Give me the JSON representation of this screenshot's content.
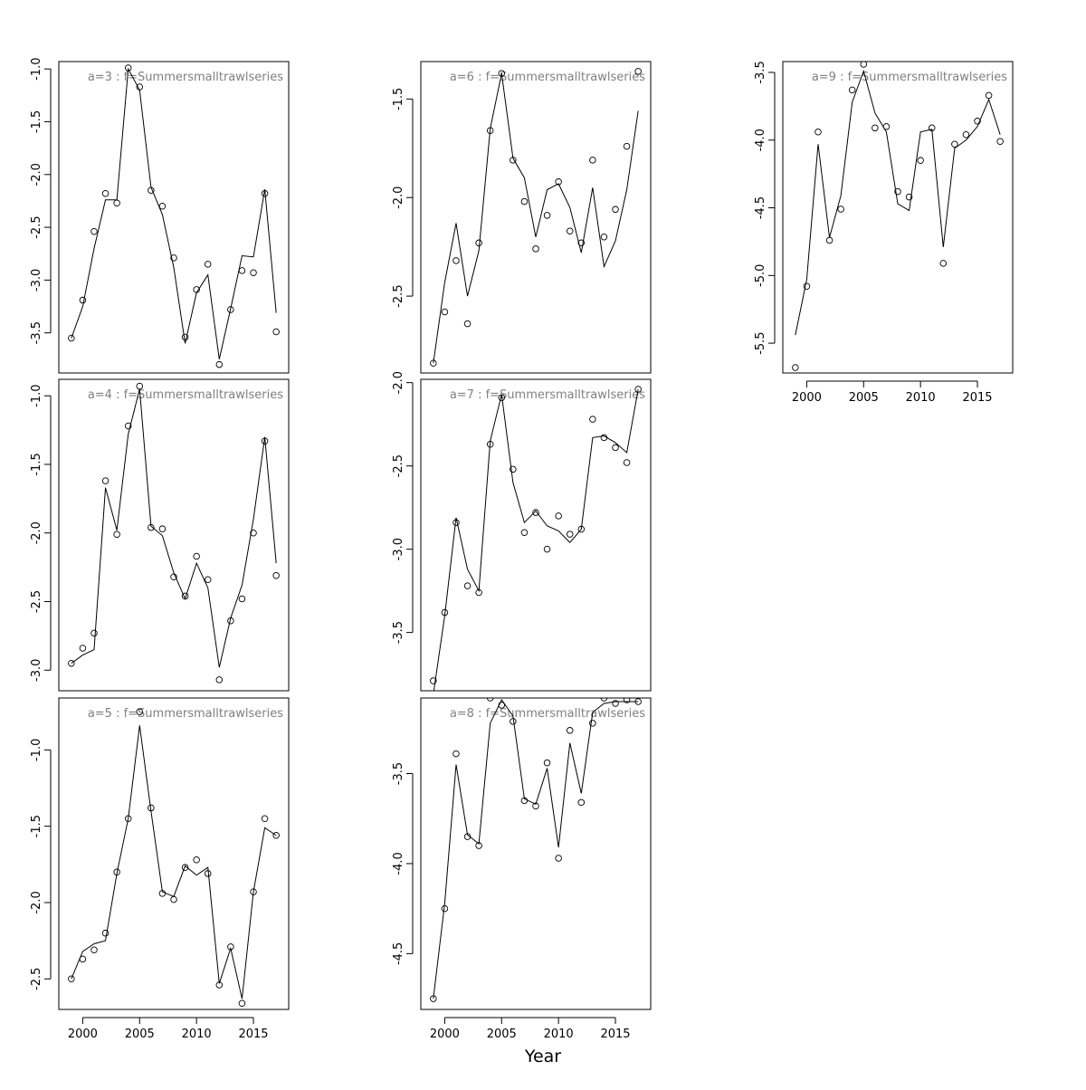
{
  "figure": {
    "xlabel": "Year"
  },
  "chart_data": [
    {
      "type": "scatter",
      "title": "a=3  :  f=Summersmalltrawlseries",
      "ylim": [
        -3.88,
        -0.93
      ],
      "yticks": [
        -3.5,
        -3.0,
        -2.5,
        -2.0,
        -1.5,
        -1.0
      ],
      "show_xticks": false,
      "x": [
        1999,
        2000,
        2001,
        2002,
        2003,
        2004,
        2005,
        2006,
        2007,
        2008,
        2009,
        2010,
        2011,
        2012,
        2013,
        2014,
        2015,
        2016,
        2017
      ],
      "series": [
        {
          "kind": "points",
          "values": [
            -3.55,
            -3.19,
            -2.54,
            -2.18,
            -2.27,
            -0.99,
            -1.17,
            -2.15,
            -2.3,
            -2.79,
            -3.54,
            -3.09,
            -2.85,
            -3.8,
            -3.28,
            -2.91,
            -2.93,
            -2.18,
            -3.49
          ]
        },
        {
          "kind": "line",
          "values": [
            -3.55,
            -3.25,
            -2.7,
            -2.24,
            -2.24,
            -1.0,
            -1.2,
            -2.12,
            -2.38,
            -2.88,
            -3.6,
            -3.12,
            -2.95,
            -3.75,
            -3.27,
            -2.77,
            -2.78,
            -2.14,
            -3.31
          ]
        }
      ]
    },
    {
      "type": "scatter",
      "title": "a=4  :  f=Summersmalltrawlseries",
      "ylim": [
        -3.15,
        -0.88
      ],
      "yticks": [
        -3.0,
        -2.5,
        -2.0,
        -1.5,
        -1.0
      ],
      "show_xticks": false,
      "x": [
        1999,
        2000,
        2001,
        2002,
        2003,
        2004,
        2005,
        2006,
        2007,
        2008,
        2009,
        2010,
        2011,
        2012,
        2013,
        2014,
        2015,
        2016,
        2017
      ],
      "series": [
        {
          "kind": "points",
          "values": [
            -2.95,
            -2.84,
            -2.73,
            -1.62,
            -2.01,
            -1.22,
            -0.93,
            -1.96,
            -1.97,
            -2.32,
            -2.46,
            -2.17,
            -2.34,
            -3.07,
            -2.64,
            -2.48,
            -2.0,
            -1.33,
            -2.31
          ]
        },
        {
          "kind": "line",
          "values": [
            -2.95,
            -2.89,
            -2.85,
            -1.67,
            -1.98,
            -1.28,
            -0.95,
            -1.95,
            -2.02,
            -2.29,
            -2.48,
            -2.22,
            -2.4,
            -2.98,
            -2.62,
            -2.38,
            -1.9,
            -1.3,
            -2.22
          ]
        }
      ]
    },
    {
      "type": "scatter",
      "title": "a=5  :  f=Summersmalltrawlseries",
      "ylim": [
        -2.7,
        -0.66
      ],
      "yticks": [
        -2.5,
        -2.0,
        -1.5,
        -1.0
      ],
      "show_xticks": true,
      "xticks": [
        2000,
        2005,
        2010,
        2015
      ],
      "x": [
        1999,
        2000,
        2001,
        2002,
        2003,
        2004,
        2005,
        2006,
        2007,
        2008,
        2009,
        2010,
        2011,
        2012,
        2013,
        2014,
        2015,
        2016,
        2017
      ],
      "series": [
        {
          "kind": "points",
          "values": [
            -2.5,
            -2.37,
            -2.31,
            -2.2,
            -1.8,
            -1.45,
            -0.75,
            -1.38,
            -1.94,
            -1.98,
            -1.77,
            -1.72,
            -1.81,
            -2.54,
            -2.29,
            -2.66,
            -1.93,
            -1.45,
            -1.56
          ]
        },
        {
          "kind": "line",
          "values": [
            -2.5,
            -2.32,
            -2.27,
            -2.25,
            -1.81,
            -1.45,
            -0.84,
            -1.4,
            -1.93,
            -1.96,
            -1.76,
            -1.82,
            -1.77,
            -2.53,
            -2.3,
            -2.63,
            -1.93,
            -1.51,
            -1.56
          ]
        }
      ]
    },
    {
      "type": "scatter",
      "title": "a=6  :  f=Summersmalltrawlseries",
      "ylim": [
        -2.89,
        -1.31
      ],
      "yticks": [
        -2.5,
        -2.0,
        -1.5
      ],
      "show_xticks": false,
      "x": [
        1999,
        2000,
        2001,
        2002,
        2003,
        2004,
        2005,
        2006,
        2007,
        2008,
        2009,
        2010,
        2011,
        2012,
        2013,
        2014,
        2015,
        2016,
        2017
      ],
      "series": [
        {
          "kind": "points",
          "values": [
            -2.84,
            -2.58,
            -2.32,
            -2.64,
            -2.23,
            -1.66,
            -1.37,
            -1.81,
            -2.02,
            -2.26,
            -2.09,
            -1.92,
            -2.17,
            -2.23,
            -1.81,
            -2.2,
            -2.06,
            -1.74,
            -1.36
          ]
        },
        {
          "kind": "line",
          "values": [
            -2.84,
            -2.43,
            -2.13,
            -2.5,
            -2.27,
            -1.65,
            -1.37,
            -1.8,
            -1.9,
            -2.2,
            -1.96,
            -1.93,
            -2.05,
            -2.28,
            -1.95,
            -2.35,
            -2.22,
            -1.96,
            -1.56
          ]
        }
      ]
    },
    {
      "type": "scatter",
      "title": "a=7  :  f=Summersmalltrawlseries",
      "ylim": [
        -3.85,
        -1.98
      ],
      "yticks": [
        -3.5,
        -3.0,
        -2.5,
        -2.0
      ],
      "show_xticks": false,
      "x": [
        1999,
        2000,
        2001,
        2002,
        2003,
        2004,
        2005,
        2006,
        2007,
        2008,
        2009,
        2010,
        2011,
        2012,
        2013,
        2014,
        2015,
        2016,
        2017
      ],
      "series": [
        {
          "kind": "points",
          "values": [
            -3.79,
            -3.38,
            -2.84,
            -3.22,
            -3.26,
            -2.37,
            -2.09,
            -2.52,
            -2.9,
            -2.78,
            -3.0,
            -2.8,
            -2.91,
            -2.88,
            -2.22,
            -2.33,
            -2.39,
            -2.48,
            -2.04
          ]
        },
        {
          "kind": "line",
          "values": [
            -3.87,
            -3.4,
            -2.81,
            -3.12,
            -3.25,
            -2.35,
            -2.07,
            -2.6,
            -2.84,
            -2.77,
            -2.86,
            -2.89,
            -2.96,
            -2.88,
            -2.33,
            -2.32,
            -2.36,
            -2.42,
            -2.04
          ]
        }
      ]
    },
    {
      "type": "scatter",
      "title": "a=8  :  f=Summersmalltrawlseries",
      "ylim": [
        -4.81,
        -3.08
      ],
      "yticks": [
        -4.5,
        -4.0,
        -3.5
      ],
      "show_xticks": true,
      "xticks": [
        2000,
        2005,
        2010,
        2015
      ],
      "x": [
        1999,
        2000,
        2001,
        2002,
        2003,
        2004,
        2005,
        2006,
        2007,
        2008,
        2009,
        2010,
        2011,
        2012,
        2013,
        2014,
        2015,
        2016,
        2017
      ],
      "series": [
        {
          "kind": "points",
          "values": [
            -4.75,
            -4.25,
            -3.39,
            -3.85,
            -3.9,
            -3.08,
            -3.12,
            -3.21,
            -3.65,
            -3.68,
            -3.44,
            -3.97,
            -3.26,
            -3.66,
            -3.22,
            -3.08,
            -3.11,
            -3.09,
            -3.1
          ]
        },
        {
          "kind": "line",
          "values": [
            -4.75,
            -4.22,
            -3.45,
            -3.84,
            -3.89,
            -3.22,
            -3.09,
            -3.18,
            -3.64,
            -3.67,
            -3.47,
            -3.91,
            -3.33,
            -3.61,
            -3.16,
            -3.11,
            -3.1,
            -3.1,
            -3.1
          ]
        }
      ]
    },
    {
      "type": "scatter",
      "title": "a=9  :  f=Summersmalltrawlseries",
      "ylim": [
        -5.72,
        -3.42
      ],
      "yticks": [
        -5.5,
        -5.0,
        -4.5,
        -4.0,
        -3.5
      ],
      "show_xticks": true,
      "xticks": [
        2000,
        2005,
        2010,
        2015
      ],
      "x": [
        1999,
        2000,
        2001,
        2002,
        2003,
        2004,
        2005,
        2006,
        2007,
        2008,
        2009,
        2010,
        2011,
        2012,
        2013,
        2014,
        2015,
        2016,
        2017
      ],
      "series": [
        {
          "kind": "points",
          "values": [
            -5.68,
            -5.08,
            -3.94,
            -4.74,
            -4.51,
            -3.63,
            -3.44,
            -3.91,
            -3.9,
            -4.38,
            -4.42,
            -4.15,
            -3.91,
            -4.91,
            -4.03,
            -3.96,
            -3.86,
            -3.67,
            -4.01
          ]
        },
        {
          "kind": "line",
          "values": [
            -5.44,
            -5.03,
            -4.03,
            -4.72,
            -4.41,
            -3.72,
            -3.49,
            -3.8,
            -3.94,
            -4.47,
            -4.52,
            -3.94,
            -3.92,
            -4.79,
            -4.06,
            -4.0,
            -3.9,
            -3.7,
            -3.96
          ]
        }
      ]
    }
  ]
}
